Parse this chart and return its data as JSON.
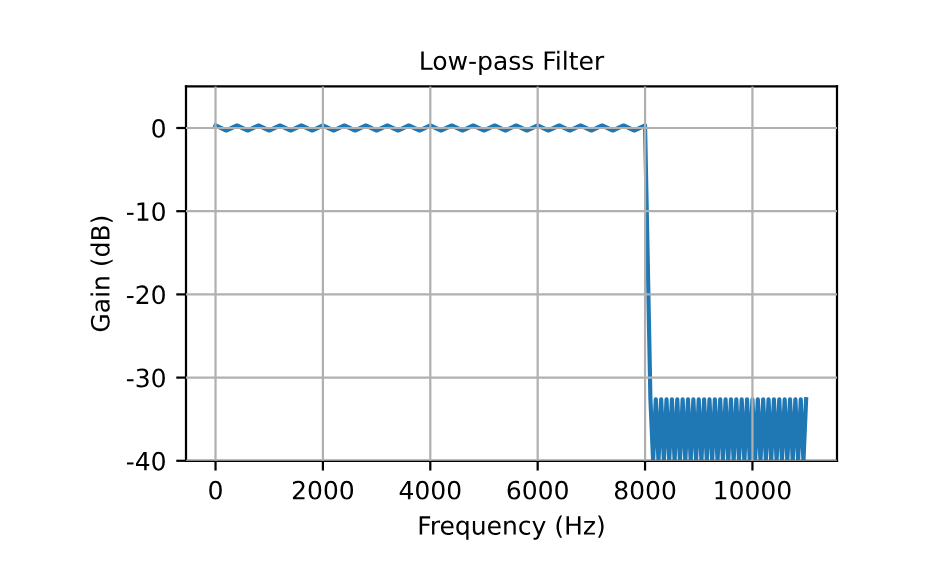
{
  "chart_data": {
    "type": "line",
    "title": "Low-pass Filter",
    "xlabel": "Frequency (Hz)",
    "ylabel": "Gain (dB)",
    "x": [
      0,
      200,
      400,
      600,
      800,
      1000,
      1200,
      1400,
      1600,
      1800,
      2000,
      2200,
      2400,
      2600,
      2800,
      3000,
      3200,
      3400,
      3600,
      3800,
      4000,
      4200,
      4400,
      4600,
      4800,
      5000,
      5200,
      5400,
      5600,
      5800,
      6000,
      6200,
      6400,
      6600,
      6800,
      7000,
      7200,
      7400,
      7600,
      7800,
      8000,
      8050,
      8100,
      8150,
      8200,
      8250,
      8300,
      8350,
      8400,
      8450,
      8500,
      8550,
      8600,
      8650,
      8700,
      8750,
      8800,
      8850,
      8900,
      8950,
      9000,
      9050,
      9100,
      9150,
      9200,
      9250,
      9300,
      9350,
      9400,
      9450,
      9500,
      9550,
      9600,
      9650,
      9700,
      9750,
      9800,
      9850,
      9900,
      9950,
      10000,
      10050,
      10100,
      10150,
      10200,
      10250,
      10300,
      10350,
      10400,
      10450,
      10500,
      10550,
      10600,
      10650,
      10700,
      10750,
      10800,
      10850,
      10900,
      10950,
      11000
    ],
    "series": [
      {
        "color": "#1f77b4",
        "values": [
          0.3,
          -0.3,
          0.3,
          -0.3,
          0.3,
          -0.3,
          0.3,
          -0.3,
          0.3,
          -0.3,
          0.3,
          -0.3,
          0.3,
          -0.3,
          0.3,
          -0.3,
          0.3,
          -0.3,
          0.3,
          -0.3,
          0.3,
          -0.3,
          0.3,
          -0.3,
          0.3,
          -0.3,
          0.3,
          -0.3,
          0.3,
          -0.3,
          0.3,
          -0.3,
          0.3,
          -0.3,
          0.3,
          -0.3,
          0.3,
          -0.3,
          0.3,
          -0.3,
          0.3,
          -16,
          -32.6,
          -40,
          -32.6,
          -40,
          -32.6,
          -40,
          -32.6,
          -40,
          -32.6,
          -40,
          -32.6,
          -40,
          -32.6,
          -40,
          -32.6,
          -40,
          -32.6,
          -40,
          -32.6,
          -40,
          -32.6,
          -40,
          -32.6,
          -40,
          -32.6,
          -40,
          -32.6,
          -40,
          -32.6,
          -40,
          -32.6,
          -40,
          -32.6,
          -40,
          -32.6,
          -40,
          -32.6,
          -40,
          -32.6,
          -40,
          -32.6,
          -40,
          -32.6,
          -40,
          -32.6,
          -40,
          -32.6,
          -40,
          -32.6,
          -40,
          -32.6,
          -40,
          -32.6,
          -40,
          -32.6,
          -40,
          -32.6,
          -40,
          -32.6
        ]
      }
    ],
    "xlim": [
      -550,
      11575
    ],
    "ylim": [
      -40,
      5
    ],
    "xticks": [
      0,
      2000,
      4000,
      6000,
      8000,
      10000
    ],
    "yticks": [
      -40,
      -30,
      -20,
      -10,
      0
    ],
    "grid": true
  }
}
